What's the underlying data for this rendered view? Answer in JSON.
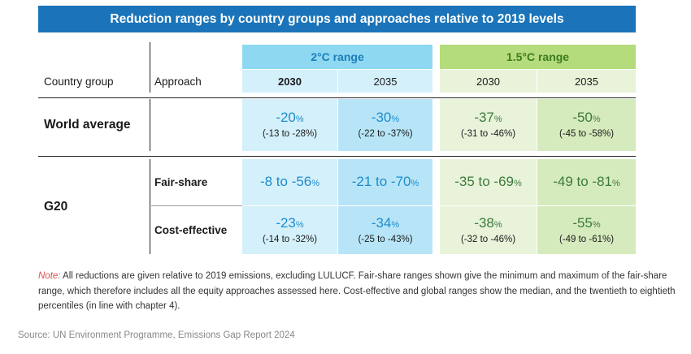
{
  "title": "Reduction ranges by country groups and approaches relative to 2019 levels",
  "headers": {
    "country_group": "Country group",
    "approach": "Approach",
    "range_2c": "2°C range",
    "range_15c": "1.5°C range",
    "years": [
      "2030",
      "2035",
      "2030",
      "2035"
    ]
  },
  "rows": {
    "world": {
      "label": "World average",
      "approach": "",
      "cells": [
        {
          "value": "-20",
          "unit": "%",
          "range": "(-13 to -28%)"
        },
        {
          "value": "-30",
          "unit": "%",
          "range": "(-22 to -37%)"
        },
        {
          "value": "-37",
          "unit": "%",
          "range": "(-31 to -46%)"
        },
        {
          "value": "-50",
          "unit": "%",
          "range": "(-45 to -58%)"
        }
      ]
    },
    "g20": {
      "label": "G20",
      "fair_share": {
        "approach": "Fair-share",
        "cells": [
          {
            "value": "-8 to -56",
            "unit": "%"
          },
          {
            "value": "-21 to -70",
            "unit": "%"
          },
          {
            "value": "-35 to -69",
            "unit": "%"
          },
          {
            "value": "-49 to -81",
            "unit": "%"
          }
        ]
      },
      "cost_effective": {
        "approach": "Cost-effective",
        "cells": [
          {
            "value": "-23",
            "unit": "%",
            "range": "(-14 to -32%)"
          },
          {
            "value": "-34",
            "unit": "%",
            "range": "(-25 to -43%)"
          },
          {
            "value": "-38",
            "unit": "%",
            "range": "(-32 to -46%)"
          },
          {
            "value": "-55",
            "unit": "%",
            "range": "(-49 to -61%)"
          }
        ]
      }
    }
  },
  "note": {
    "tag": "Note:",
    "text": " All reductions are given relative to 2019 emissions, excluding LULUCF. Fair-share ranges shown give the minimum and maximum of the fair-share range, which therefore includes all the equity approaches assessed here. Cost-effective and global ranges show the median, and the twentieth to eightieth percentiles (in line with chapter 4)."
  },
  "source": "Source: UN Environment Programme, Emissions Gap Report 2024",
  "colors": {
    "title_bg": "#1b74b9",
    "range_2c_header": "#8fd8f2",
    "range_15c_header": "#b5dc7c",
    "blue_value": "#1e8ccc",
    "green_value": "#3d7a3a",
    "note_tag": "#d9534f"
  }
}
